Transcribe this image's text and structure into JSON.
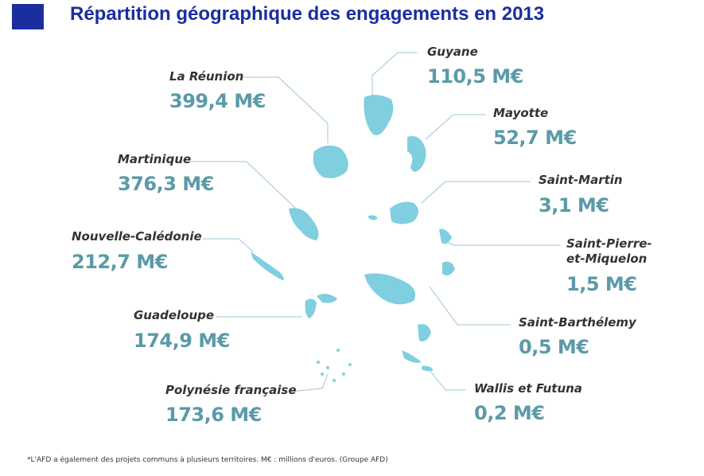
{
  "title": "Répartition géographique des engagements en 2013",
  "territories": [
    {
      "name": "La Réunion",
      "amount": "399,4 M€"
    },
    {
      "name": "Martinique",
      "amount": "376,3 M€"
    },
    {
      "name": "Nouvelle-Calédonie",
      "amount": "212,7 M€"
    },
    {
      "name": "Guadeloupe",
      "amount": "174,9 M€"
    },
    {
      "name": "Polynésie française",
      "amount": "173,6 M€"
    },
    {
      "name": "Guyane",
      "amount": "110,5 M€"
    },
    {
      "name": "Mayotte",
      "amount": "52,7 M€"
    },
    {
      "name": "Saint-Martin",
      "amount": "3,1 M€"
    },
    {
      "name": "Saint-Pierre-et-Miquelon",
      "amount": "1,5 M€"
    },
    {
      "name": "Saint-Barthélemy",
      "amount": "0,5 M€"
    },
    {
      "name": "Wallis et Futuna",
      "amount": "0,2 M€"
    }
  ],
  "footnote": "*L'AFD a également des projets communs à plusieurs territoires. M€ : millions d'euros. (Groupe AFD)"
}
